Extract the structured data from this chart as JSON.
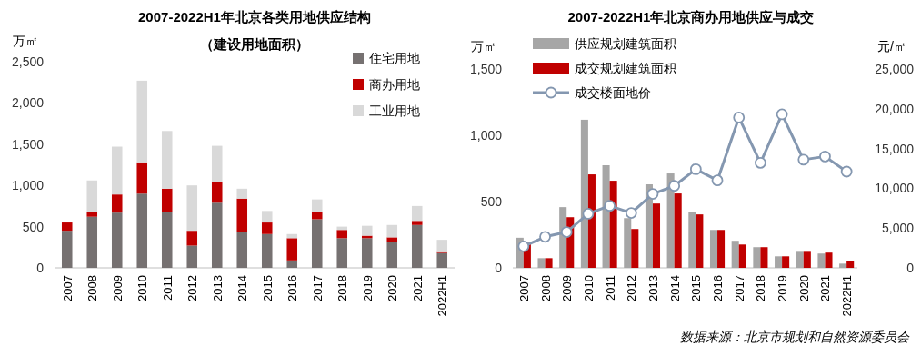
{
  "chart_data": [
    {
      "type": "bar",
      "title": "2007-2022H1年北京各类用地供应结构",
      "subtitle": "（建设用地面积）",
      "ylabel": "万㎡",
      "stacked": true,
      "legend": "top right",
      "grid": false,
      "categories": [
        "2007",
        "2008",
        "2009",
        "2010",
        "2011",
        "2012",
        "2013",
        "2014",
        "2015",
        "2016",
        "2017",
        "2018",
        "2019",
        "2020",
        "2021",
        "2022H1"
      ],
      "series": [
        {
          "name": "住宅用地",
          "color": "#767171",
          "values": [
            450,
            620,
            670,
            900,
            680,
            270,
            790,
            440,
            410,
            90,
            590,
            360,
            360,
            310,
            520,
            180
          ]
        },
        {
          "name": "商办用地",
          "color": "#c00000",
          "values": [
            100,
            60,
            220,
            380,
            280,
            180,
            250,
            400,
            140,
            270,
            90,
            100,
            30,
            60,
            50,
            10
          ]
        },
        {
          "name": "工业用地",
          "color": "#d9d9d9",
          "values": [
            0,
            380,
            580,
            990,
            700,
            550,
            440,
            120,
            140,
            50,
            150,
            40,
            120,
            150,
            180,
            150
          ]
        }
      ],
      "ylim": [
        0,
        2500
      ],
      "yticks": [
        {
          "value": 0,
          "label": "0"
        },
        {
          "value": 500,
          "label": "500"
        },
        {
          "value": 1000,
          "label": "1,000"
        },
        {
          "value": 1500,
          "label": "1,500"
        },
        {
          "value": 2000,
          "label": "2,000"
        },
        {
          "value": 2500,
          "label": "2,500"
        }
      ]
    },
    {
      "type": "bar",
      "title": "2007-2022H1年北京商办用地供应与成交",
      "ylabel": "万㎡",
      "y2label": "元/㎡",
      "legend": "top left",
      "grid": false,
      "categories": [
        "2007",
        "2008",
        "2009",
        "2010",
        "2011",
        "2012",
        "2013",
        "2014",
        "2015",
        "2016",
        "2017",
        "2018",
        "2019",
        "2020",
        "2021",
        "2022H1"
      ],
      "series": [
        {
          "name": "供应规划建筑面积",
          "color": "#a6a6a6",
          "values": [
            227,
            73,
            458,
            1117,
            774,
            375,
            630,
            712,
            419,
            286,
            204,
            156,
            87,
            121,
            108,
            32
          ]
        },
        {
          "name": "成交规划建筑面积",
          "color": "#c00000",
          "values": [
            188,
            73,
            382,
            705,
            657,
            293,
            485,
            561,
            403,
            286,
            176,
            156,
            87,
            121,
            115,
            53
          ]
        },
        {
          "name": "成交楼面地价",
          "type": "line",
          "axis": "y2",
          "marker": "circle",
          "color": "#8497b0",
          "values": [
            2700,
            3900,
            4500,
            6800,
            7800,
            6900,
            9300,
            10300,
            12400,
            11000,
            18900,
            13200,
            19300,
            13600,
            14000,
            12100
          ]
        }
      ],
      "ylim": [
        0,
        1500
      ],
      "yticks": [
        {
          "value": 0,
          "label": "0"
        },
        {
          "value": 500,
          "label": "500"
        },
        {
          "value": 1000,
          "label": "1,000"
        },
        {
          "value": 1500,
          "label": "1,500"
        }
      ],
      "y2lim": [
        0,
        25000
      ],
      "y2ticks": [
        {
          "value": 0,
          "label": "0"
        },
        {
          "value": 5000,
          "label": "5,000"
        },
        {
          "value": 10000,
          "label": "10,000"
        },
        {
          "value": 15000,
          "label": "15,000"
        },
        {
          "value": 20000,
          "label": "20,000"
        },
        {
          "value": 25000,
          "label": "25,000"
        }
      ],
      "annotations": [
        "数据来源：北京市规划和自然资源委员会"
      ]
    }
  ]
}
